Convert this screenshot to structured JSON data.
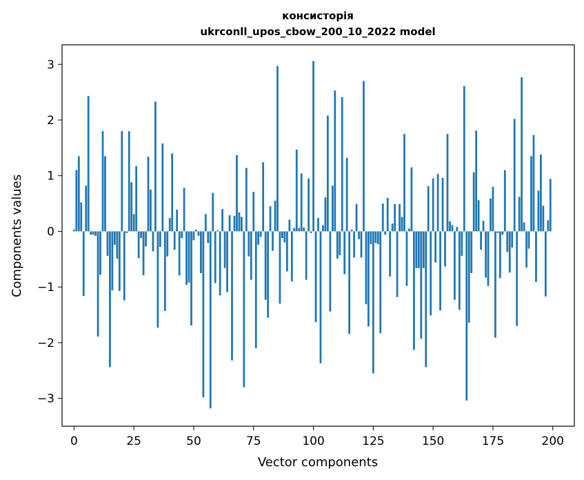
{
  "chart_data": {
    "type": "bar",
    "title": "консисторія",
    "subtitle": "ukrconll_upos_cbow_200_10_2022 model",
    "xlabel": "Vector components",
    "ylabel": "Components values",
    "xlim": [
      -5,
      209
    ],
    "ylim": [
      -3.5,
      3.35
    ],
    "xticks": [
      0,
      25,
      50,
      75,
      100,
      125,
      150,
      175,
      200
    ],
    "xtick_labels": [
      "0",
      "25",
      "50",
      "75",
      "100",
      "125",
      "150",
      "175",
      "200"
    ],
    "yticks": [
      -3,
      -2,
      -1,
      0,
      1,
      2,
      3
    ],
    "ytick_labels": [
      "−3",
      "−2",
      "−1",
      "0",
      "1",
      "2",
      "3"
    ],
    "bar_color": "#1f77b4",
    "x": [
      0,
      1,
      2,
      3,
      4,
      5,
      6,
      7,
      8,
      9,
      10,
      11,
      12,
      13,
      14,
      15,
      16,
      17,
      18,
      19,
      20,
      21,
      22,
      23,
      24,
      25,
      26,
      27,
      28,
      29,
      30,
      31,
      32,
      33,
      34,
      35,
      36,
      37,
      38,
      39,
      40,
      41,
      42,
      43,
      44,
      45,
      46,
      47,
      48,
      49,
      50,
      51,
      52,
      53,
      54,
      55,
      56,
      57,
      58,
      59,
      60,
      61,
      62,
      63,
      64,
      65,
      66,
      67,
      68,
      69,
      70,
      71,
      72,
      73,
      74,
      75,
      76,
      77,
      78,
      79,
      80,
      81,
      82,
      83,
      84,
      85,
      86,
      87,
      88,
      89,
      90,
      91,
      92,
      93,
      94,
      95,
      96,
      97,
      98,
      99,
      100,
      101,
      102,
      103,
      104,
      105,
      106,
      107,
      108,
      109,
      110,
      111,
      112,
      113,
      114,
      115,
      116,
      117,
      118,
      119,
      120,
      121,
      122,
      123,
      124,
      125,
      126,
      127,
      128,
      129,
      130,
      131,
      132,
      133,
      134,
      135,
      136,
      137,
      138,
      139,
      140,
      141,
      142,
      143,
      144,
      145,
      146,
      147,
      148,
      149,
      150,
      151,
      152,
      153,
      154,
      155,
      156,
      157,
      158,
      159,
      160,
      161,
      162,
      163,
      164,
      165,
      166,
      167,
      168,
      169,
      170,
      171,
      172,
      173,
      174,
      175,
      176,
      177,
      178,
      179,
      180,
      181,
      182,
      183,
      184,
      185,
      186,
      187,
      188,
      189,
      190,
      191,
      192,
      193,
      194,
      195,
      196,
      197,
      198,
      199
    ],
    "values": [
      0.03,
      1.1,
      1.35,
      0.52,
      -1.16,
      0.82,
      2.43,
      -0.06,
      -0.06,
      -0.08,
      -1.89,
      -0.78,
      1.8,
      1.35,
      -0.44,
      -2.44,
      -1.06,
      -0.24,
      -0.49,
      -1.07,
      1.8,
      -1.24,
      -0.03,
      1.8,
      0.88,
      0.31,
      1.17,
      -0.48,
      -0.12,
      -0.79,
      -0.27,
      1.34,
      0.75,
      -0.36,
      2.33,
      -1.73,
      -0.28,
      1.58,
      -1.43,
      -0.45,
      0.24,
      1.4,
      -0.33,
      0.39,
      -0.79,
      -0.12,
      0.78,
      -0.96,
      -0.92,
      -1.69,
      -0.16,
      0.03,
      -0.08,
      -0.75,
      -2.98,
      0.31,
      -0.21,
      -3.18,
      0.69,
      -0.93,
      0.02,
      -1.15,
      0.4,
      -0.66,
      -1.09,
      0.29,
      -2.32,
      0.28,
      1.37,
      0.34,
      0.26,
      -2.8,
      1.14,
      -0.45,
      -0.87,
      0.71,
      -2.1,
      -0.24,
      -0.1,
      1.24,
      -1.23,
      -1.55,
      0.45,
      -0.35,
      0.55,
      2.97,
      -1.3,
      -0.12,
      -0.2,
      -0.72,
      0.21,
      -0.9,
      0.06,
      1.47,
      0.06,
      1.04,
      0.07,
      -0.87,
      0.95,
      -0.03,
      3.06,
      -1.63,
      0.24,
      -2.37,
      0.11,
      0.61,
      2.08,
      -1.44,
      0.82,
      2.53,
      -0.49,
      -0.43,
      2.41,
      -0.77,
      1.32,
      -1.84,
      0.03,
      -0.47,
      0.49,
      -0.14,
      -0.47,
      2.7,
      -1.31,
      -1.71,
      -0.23,
      -2.55,
      -0.21,
      -0.23,
      -1.83,
      0.5,
      -0.06,
      0.6,
      -0.81,
      0.14,
      0.49,
      -1.18,
      0.49,
      0.26,
      1.75,
      -0.98,
      0.05,
      1.15,
      -2.13,
      -0.66,
      -0.66,
      -1.93,
      -0.66,
      -2.44,
      0.81,
      -1.51,
      0.95,
      -0.56,
      1.03,
      -1.42,
      0.96,
      -0.63,
      1.75,
      0.18,
      0.11,
      -1.23,
      0.08,
      -1.41,
      -0.44,
      2.61,
      -3.04,
      -1.64,
      -0.75,
      1.06,
      1.81,
      0.56,
      -0.33,
      0.19,
      -0.83,
      -0.98,
      0.59,
      0.8,
      -1.91,
      -0.03,
      -0.84,
      -0.06,
      1.1,
      -0.37,
      -0.74,
      -0.29,
      2.02,
      -1.7,
      0.62,
      2.77,
      0.16,
      -0.65,
      -0.31,
      1.35,
      1.73,
      -0.91,
      0.73,
      1.38,
      0.46,
      -1.17,
      0.2,
      0.94
    ]
  }
}
